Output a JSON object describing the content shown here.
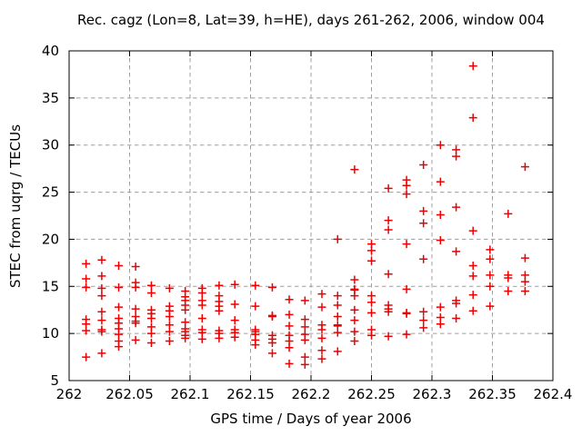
{
  "figure": {
    "title": "Rec. cagz (Lon=8, Lat=39, h=HE), days 261-262, 2006, window 004",
    "xlabel": "GPS time / Days of year 2006",
    "ylabel": "STEC from uqrg / TECUs"
  },
  "chart_data": {
    "type": "scatter",
    "title": "Rec. cagz (Lon=8, Lat=39, h=HE), days 261-262, 2006, window 004",
    "xlabel": "GPS time / Days of year 2006",
    "ylabel": "STEC from uqrg / TECUs",
    "xlim": [
      262.0,
      262.4
    ],
    "ylim": [
      5,
      40
    ],
    "xtick_values": [
      262.0,
      262.05,
      262.1,
      262.15,
      262.2,
      262.25,
      262.3,
      262.35,
      262.4
    ],
    "xtick_labels": [
      "262",
      "262.05",
      "262.1",
      "262.15",
      "262.2",
      "262.25",
      "262.3",
      "262.35",
      "262.4"
    ],
    "ytick_values": [
      5,
      10,
      15,
      20,
      25,
      30,
      35,
      40
    ],
    "ytick_labels": [
      "5",
      "10",
      "15",
      "20",
      "25",
      "30",
      "35",
      "40"
    ],
    "grid": true,
    "legend": "none",
    "marker": "plus",
    "marker_color": "#ee0000",
    "grid_color": "#9f9f9f",
    "border_color": "#000000",
    "series": [
      {
        "name": "STEC from uqrg",
        "columns": [
          {
            "t": 262.014,
            "v": [
              17.4,
              15.8,
              14.9,
              11.5,
              11.0,
              10.3,
              7.5
            ]
          },
          {
            "t": 262.027,
            "v": [
              17.8,
              16.1,
              14.8,
              14.0,
              12.3,
              11.4,
              10.4,
              10.2,
              7.9
            ]
          },
          {
            "t": 262.041,
            "v": [
              17.2,
              14.9,
              12.8,
              11.6,
              11.1,
              10.5,
              9.9,
              9.2,
              8.6
            ]
          },
          {
            "t": 262.055,
            "v": [
              17.1,
              15.4,
              14.9,
              12.6,
              11.8,
              11.3,
              11.1,
              9.3
            ]
          },
          {
            "t": 262.068,
            "v": [
              15.1,
              14.3,
              12.5,
              12.1,
              11.6,
              10.7,
              10.0,
              9.0
            ]
          },
          {
            "t": 262.083,
            "v": [
              14.8,
              12.9,
              12.4,
              11.8,
              10.9,
              10.2,
              9.2
            ]
          },
          {
            "t": 262.096,
            "v": [
              14.5,
              13.9,
              13.5,
              13.0,
              12.5,
              11.2,
              10.5,
              10.2,
              9.8,
              9.5
            ]
          },
          {
            "t": 262.11,
            "v": [
              14.8,
              14.3,
              13.5,
              13.0,
              11.6,
              10.4,
              10.1,
              9.4
            ]
          },
          {
            "t": 262.124,
            "v": [
              15.1,
              14.0,
              13.4,
              12.9,
              12.4,
              10.3,
              10.0,
              9.5
            ]
          },
          {
            "t": 262.137,
            "v": [
              15.2,
              13.1,
              11.4,
              10.4,
              10.1,
              9.6
            ]
          },
          {
            "t": 262.154,
            "v": [
              15.1,
              12.9,
              10.4,
              10.2,
              9.9,
              9.3,
              8.8
            ]
          },
          {
            "t": 262.168,
            "v": [
              14.9,
              11.9,
              11.8,
              9.8,
              9.4,
              9.0,
              7.9
            ]
          },
          {
            "t": 262.182,
            "v": [
              13.6,
              12.0,
              10.8,
              9.8,
              9.2,
              8.5,
              6.8
            ]
          },
          {
            "t": 262.195,
            "v": [
              13.5,
              11.5,
              10.7,
              9.9,
              9.3,
              7.5,
              6.7
            ]
          },
          {
            "t": 262.209,
            "v": [
              14.2,
              12.8,
              10.9,
              10.4,
              9.5,
              8.2,
              7.3
            ]
          },
          {
            "t": 262.222,
            "v": [
              20.0,
              14.0,
              13.0,
              11.8,
              10.9,
              10.8,
              10.1,
              8.1
            ]
          },
          {
            "t": 262.236,
            "v": [
              27.4,
              15.7,
              14.7,
              14.6,
              14.0,
              12.5,
              11.4,
              10.2,
              9.2
            ]
          },
          {
            "t": 262.25,
            "v": [
              19.5,
              18.8,
              17.7,
              14.0,
              13.3,
              12.2,
              10.4,
              9.8
            ]
          },
          {
            "t": 262.264,
            "v": [
              25.4,
              22.0,
              21.0,
              16.3,
              13.0,
              12.6,
              12.3,
              9.7
            ]
          },
          {
            "t": 262.279,
            "v": [
              26.3,
              25.7,
              24.8,
              19.5,
              14.7,
              12.2,
              12.1,
              9.9
            ]
          },
          {
            "t": 262.293,
            "v": [
              27.9,
              23.0,
              21.7,
              17.9,
              12.3,
              11.4,
              10.6
            ]
          },
          {
            "t": 262.307,
            "v": [
              30.0,
              26.1,
              22.6,
              19.9,
              12.8,
              11.7,
              11.0
            ]
          },
          {
            "t": 262.32,
            "v": [
              29.5,
              28.8,
              23.4,
              18.7,
              13.5,
              13.2,
              11.6
            ]
          },
          {
            "t": 262.334,
            "v": [
              38.4,
              32.9,
              20.9,
              17.2,
              16.1,
              14.1,
              12.4
            ]
          },
          {
            "t": 262.348,
            "v": [
              18.9,
              17.9,
              16.2,
              15.0,
              12.9
            ]
          },
          {
            "t": 262.363,
            "v": [
              22.7,
              16.2,
              15.9,
              14.5
            ]
          },
          {
            "t": 262.377,
            "v": [
              27.7,
              18.0,
              16.2,
              15.5,
              14.5
            ]
          }
        ]
      }
    ]
  }
}
